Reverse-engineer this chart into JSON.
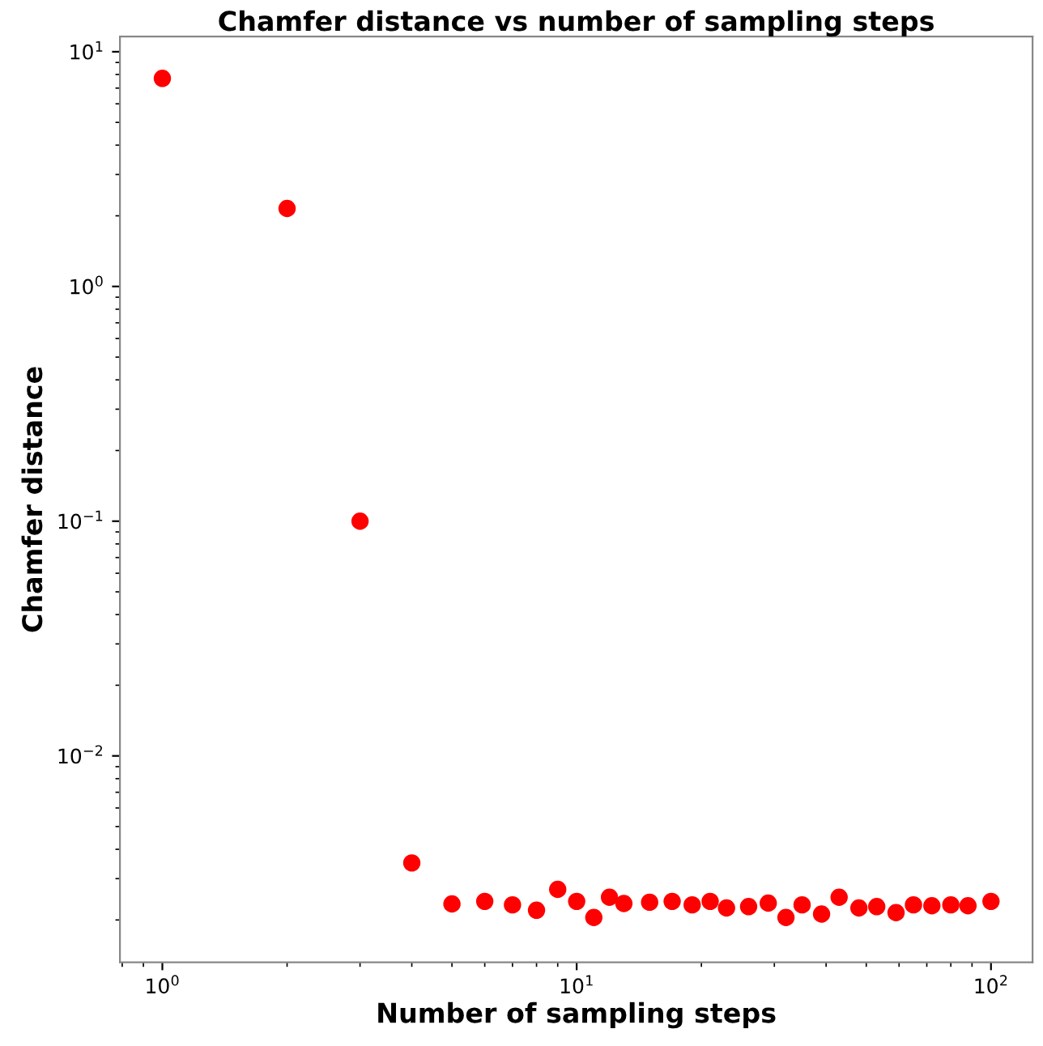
{
  "chart_data": {
    "type": "scatter",
    "title": "Chamfer distance vs number of sampling steps",
    "xlabel": "Number of sampling steps",
    "ylabel": "Chamfer distance",
    "log": "xy",
    "marker": "circle",
    "grid": false,
    "legend": false,
    "x": [
      1,
      2,
      3,
      4,
      5,
      6,
      7,
      8,
      9,
      10,
      11,
      12,
      13,
      15,
      17,
      19,
      21,
      23,
      26,
      29,
      32,
      35,
      39,
      43,
      48,
      53,
      59,
      65,
      72,
      80,
      88,
      100
    ],
    "series": [
      {
        "color": "#ff0000",
        "values": [
          7.7,
          2.15,
          0.1,
          0.0035,
          0.00234,
          0.0024,
          0.00232,
          0.0022,
          0.0027,
          0.0024,
          0.00205,
          0.0025,
          0.00235,
          0.00238,
          0.0024,
          0.00232,
          0.0024,
          0.00225,
          0.00228,
          0.00236,
          0.00205,
          0.00232,
          0.00212,
          0.0025,
          0.00225,
          0.00228,
          0.00215,
          0.00232,
          0.0023,
          0.00232,
          0.0023,
          0.0024
        ]
      }
    ],
    "xlim": [
      0.79,
      126
    ],
    "ylim": [
      0.00132,
      11.6
    ],
    "xticks": [
      {
        "value": 1,
        "label": "10$^{0}$"
      },
      {
        "value": 10,
        "label": "10$^{1}$"
      },
      {
        "value": 100,
        "label": "10$^{2}$"
      }
    ],
    "yticks": [
      {
        "value": 0.01,
        "label": "10$^{−2}$"
      },
      {
        "value": 0.1,
        "label": "10$^{−1}$"
      },
      {
        "value": 1,
        "label": "10$^{0}$"
      },
      {
        "value": 10,
        "label": "10$^{1}$"
      }
    ]
  }
}
